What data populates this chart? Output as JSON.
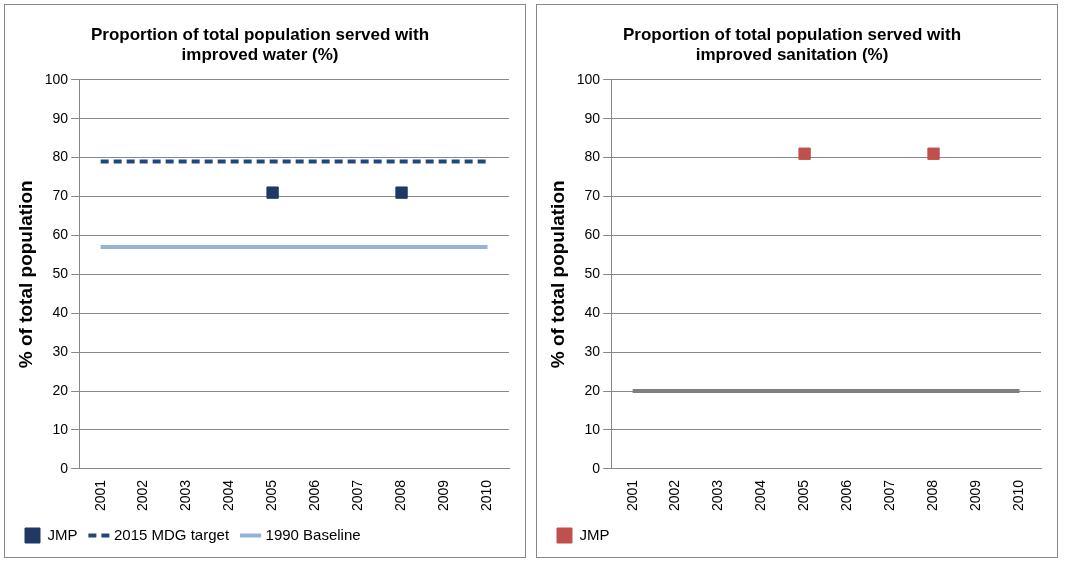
{
  "chart_data": [
    {
      "type": "line",
      "title": "Proportion of total population served with improved water (%)",
      "ylabel": "% of total population",
      "categories": [
        "2001",
        "2002",
        "2003",
        "2004",
        "2005",
        "2006",
        "2007",
        "2008",
        "2009",
        "2010"
      ],
      "ylim": [
        0,
        100
      ],
      "yticks": [
        0,
        10,
        20,
        30,
        40,
        50,
        60,
        70,
        80,
        90,
        100
      ],
      "grid": "y",
      "legend": "bottom",
      "series": [
        {
          "name": "JMP",
          "type": "scatter",
          "marker": "square",
          "color": "#1f3864",
          "values": [
            null,
            null,
            null,
            null,
            71,
            null,
            null,
            71,
            null,
            null
          ]
        },
        {
          "name": "2015 MDG target",
          "marker": "none",
          "line_style": "dashed",
          "color": "#1f497d",
          "values": [
            79,
            79,
            79,
            79,
            79,
            79,
            79,
            79,
            79,
            79
          ]
        },
        {
          "name": "1990 Baseline",
          "marker": "none",
          "line_style": "solid",
          "color": "#95b3d7",
          "values": [
            57,
            57,
            57,
            57,
            57,
            57,
            57,
            57,
            57,
            57
          ]
        }
      ]
    },
    {
      "type": "line",
      "title": "Proportion of total population served with improved sanitation (%)",
      "ylabel": "% of total population",
      "categories": [
        "2001",
        "2002",
        "2003",
        "2004",
        "2005",
        "2006",
        "2007",
        "2008",
        "2009",
        "2010"
      ],
      "ylim": [
        0,
        100
      ],
      "yticks": [
        0,
        10,
        20,
        30,
        40,
        50,
        60,
        70,
        80,
        90,
        100
      ],
      "grid": "y",
      "legend": "bottom",
      "series": [
        {
          "name": "JMP",
          "type": "scatter",
          "marker": "square",
          "color": "#c0504d",
          "values": [
            null,
            null,
            null,
            null,
            81,
            null,
            null,
            81,
            null,
            null
          ]
        },
        {
          "marker": "none",
          "line_style": "solid",
          "color": "#7f7f7f",
          "values": [
            20,
            20,
            20,
            20,
            20,
            20,
            20,
            20,
            20,
            20
          ]
        }
      ]
    }
  ]
}
